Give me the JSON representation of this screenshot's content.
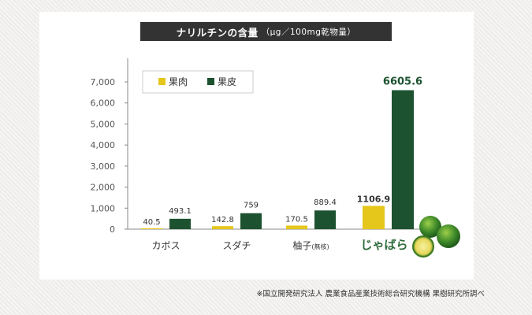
{
  "title": "ナリルチンの含量",
  "title_unit": "（μg／100mg乾物量）",
  "source_note": "※国立開発研究法人 農業食品産業技術総合研究機構 果樹研究所調べ",
  "colors": {
    "flesh": "#e5c61a",
    "peel": "#1d5230",
    "highlight_label": "#2e6b3b",
    "axis": "#888888",
    "grid_text": "#555555"
  },
  "chart_data": {
    "type": "bar",
    "title": "ナリルチンの含量",
    "ylabel": "",
    "xlabel": "",
    "ylim": [
      0,
      7000
    ],
    "yticks": [
      0,
      1000,
      2000,
      3000,
      4000,
      5000,
      6000,
      7000
    ],
    "ytick_labels": [
      "0",
      "1,000",
      "2,000",
      "3,000",
      "4,000",
      "5,000",
      "6,000",
      "7,000"
    ],
    "grid": false,
    "legend_position": "top-left",
    "categories": [
      "カボス",
      "スダチ",
      "柚子",
      "じゃばら"
    ],
    "category_suffix": [
      "",
      "",
      "(無核)",
      ""
    ],
    "series": [
      {
        "name": "果肉",
        "values": [
          40.5,
          142.8,
          170.5,
          1106.9
        ],
        "labels": [
          "40.5",
          "142.8",
          "170.5",
          "1106.9"
        ]
      },
      {
        "name": "果皮",
        "values": [
          493.1,
          759,
          889.4,
          6605.6
        ],
        "labels": [
          "493.1",
          "759",
          "889.4",
          "6605.6"
        ]
      }
    ]
  },
  "fruit_image": "citrus-fruit-icon"
}
